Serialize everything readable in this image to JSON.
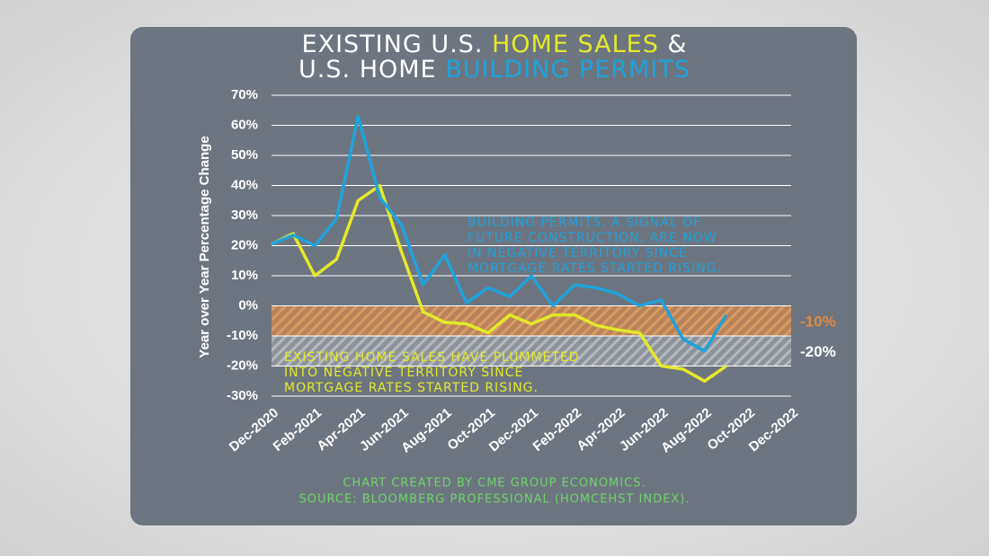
{
  "chart_data": {
    "type": "line",
    "title": [
      [
        "EXISTING U.S. ",
        "HOME SALES",
        " &"
      ],
      [
        "U.S. HOME ",
        "BUILDING PERMITS"
      ]
    ],
    "y_label": "Year over Year Percentage Change",
    "categories": [
      "Dec-2020",
      null,
      "Feb-2021",
      null,
      "Apr-2021",
      null,
      "Jun-2021",
      null,
      "Aug-2021",
      null,
      "Oct-2021",
      null,
      "Dec-2021",
      null,
      "Feb-2022",
      null,
      "Apr-2022",
      null,
      "Jun-2022",
      null,
      "Aug-2022",
      null,
      "Oct-2022",
      null,
      "Dec-2022"
    ],
    "series": [
      {
        "name": "BUILDING PERMITS",
        "color": "#1fa3dc",
        "values": [
          20.5,
          23.5,
          20,
          29,
          63,
          36,
          27,
          7,
          17,
          1,
          6,
          3,
          10,
          0,
          7,
          6,
          4,
          0,
          2,
          -11,
          -15,
          -3,
          null,
          null,
          null
        ]
      },
      {
        "name": "HOME SALES",
        "color": "#e4e92a",
        "values": [
          20.5,
          24,
          10,
          15.5,
          35,
          40,
          18,
          -2,
          -5.5,
          -6,
          -9,
          -3,
          -6,
          -3,
          -3,
          -6.5,
          -8,
          -9,
          -20,
          -21,
          -25,
          -20,
          null,
          null,
          null
        ]
      }
    ],
    "ylim": [
      -30,
      70
    ],
    "yticks": [
      {
        "value": -30,
        "label": "-30%"
      },
      {
        "value": -20,
        "label": "-20%"
      },
      {
        "value": -10,
        "label": "-10%"
      },
      {
        "value": 0,
        "label": "0%"
      },
      {
        "value": 10,
        "label": "10%"
      },
      {
        "value": 20,
        "label": "20%"
      },
      {
        "value": 30,
        "label": "30%"
      },
      {
        "value": 40,
        "label": "40%"
      },
      {
        "value": 50,
        "label": "50%"
      },
      {
        "value": 60,
        "label": "60%"
      },
      {
        "value": 70,
        "label": "70%"
      }
    ],
    "grid": true,
    "bands": [
      {
        "from": 0,
        "to": -10,
        "label": "-10%",
        "color": "#e08a3c"
      },
      {
        "from": -10,
        "to": -20,
        "label": "-20%",
        "color": "#ffffff"
      }
    ],
    "annotations": [
      {
        "lines": [
          "BUILDING PERMITS, A SIGNAL OF",
          "FUTURE CONSTRUCTION, ARE NOW",
          "IN NEGATIVE TERRITORY SINCE",
          "MORTGAGE RATES STARTED RISING."
        ],
        "color": "#1fa3dc"
      },
      {
        "lines": [
          "EXISTING HOME SALES HAVE PLUMMETED",
          "INTO NEGATIVE TERRITORY SINCE",
          "MORTGAGE RATES STARTED RISING."
        ],
        "color": "#e4e92a"
      }
    ],
    "footer": [
      "CHART CREATED BY CME GROUP ECONOMICS.",
      "SOURCE:  BLOOMBERG PROFESSIONAL (HOMCEHST INDEX)."
    ]
  }
}
